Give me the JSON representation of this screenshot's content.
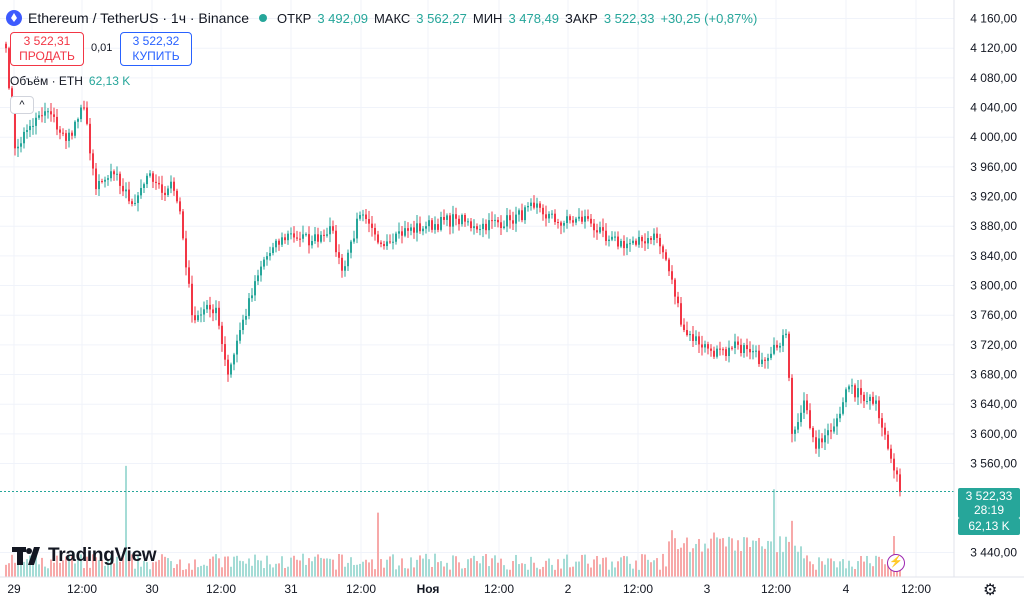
{
  "header": {
    "symbol": "Ethereum / TetherUS · 1ч · Binance",
    "open_label": "ОТКР",
    "open_value": "3 492,09",
    "high_label": "МАКС",
    "high_value": "3 562,27",
    "low_label": "МИН",
    "low_value": "3 478,49",
    "close_label": "ЗАКР",
    "close_value": "3 522,33",
    "change": "+30,25 (+0,87%)"
  },
  "trade": {
    "sell_price": "3 522,31",
    "sell_label": "ПРОДАТЬ",
    "spread": "0,01",
    "buy_price": "3 522,32",
    "buy_label": "КУПИТЬ"
  },
  "volume_legend": {
    "label": "Объём · ETH",
    "value": "62,13 K"
  },
  "collapse_icon": "^",
  "brand": "TradingView",
  "price_tag": {
    "price": "3 522,33",
    "countdown": "28:19"
  },
  "volume_tag": "62,13 K",
  "colors": {
    "up": "#26a69a",
    "down": "#f23645",
    "up_vol": "#a5dcd6",
    "down_vol": "#f7a9a9"
  },
  "chart_data": {
    "type": "candlestick",
    "x_tick_labels": [
      "29",
      "12:00",
      "30",
      "12:00",
      "31",
      "12:00",
      "Ноя",
      "12:00",
      "2",
      "12:00",
      "3",
      "12:00",
      "4",
      "12:00"
    ],
    "y_tick_labels": [
      "4 160,00",
      "4 120,00",
      "4 080,00",
      "4 040,00",
      "4 000,00",
      "3 960,00",
      "3 920,00",
      "3 880,00",
      "3 840,00",
      "3 800,00",
      "3 760,00",
      "3 720,00",
      "3 680,00",
      "3 640,00",
      "3 600,00",
      "3 560,00",
      "3 440,00"
    ],
    "y_ticks": [
      4160,
      4120,
      4080,
      4040,
      4000,
      3960,
      3920,
      3880,
      3840,
      3800,
      3760,
      3720,
      3680,
      3640,
      3600,
      3560,
      3440
    ],
    "ylim": [
      3407,
      4185
    ],
    "last_price": 3522.33,
    "anchors": [
      [
        0,
        4120
      ],
      [
        3,
        3985
      ],
      [
        8,
        4015
      ],
      [
        14,
        4035
      ],
      [
        20,
        3995
      ],
      [
        26,
        4040
      ],
      [
        30,
        3930
      ],
      [
        36,
        3950
      ],
      [
        42,
        3910
      ],
      [
        47,
        3948
      ],
      [
        52,
        3925
      ],
      [
        55,
        3940
      ],
      [
        58,
        3900
      ],
      [
        62,
        3760
      ],
      [
        70,
        3770
      ],
      [
        74,
        3680
      ],
      [
        78,
        3740
      ],
      [
        86,
        3835
      ],
      [
        94,
        3870
      ],
      [
        102,
        3860
      ],
      [
        108,
        3880
      ],
      [
        112,
        3820
      ],
      [
        118,
        3895
      ],
      [
        124,
        3858
      ],
      [
        130,
        3870
      ],
      [
        140,
        3880
      ],
      [
        150,
        3890
      ],
      [
        156,
        3880
      ],
      [
        168,
        3888
      ],
      [
        176,
        3905
      ],
      [
        184,
        3885
      ],
      [
        194,
        3890
      ],
      [
        200,
        3860
      ],
      [
        210,
        3855
      ],
      [
        216,
        3870
      ],
      [
        220,
        3835
      ],
      [
        226,
        3740
      ],
      [
        234,
        3715
      ],
      [
        240,
        3705
      ],
      [
        244,
        3720
      ],
      [
        248,
        3710
      ],
      [
        252,
        3700
      ],
      [
        256,
        3720
      ],
      [
        260,
        3735
      ],
      [
        262,
        3600
      ],
      [
        266,
        3645
      ],
      [
        270,
        3580
      ],
      [
        276,
        3610
      ],
      [
        280,
        3660
      ],
      [
        290,
        3645
      ],
      [
        294,
        3580
      ],
      [
        298,
        3522
      ]
    ],
    "volume_spikes": {
      "40": 0.95,
      "124": 0.55,
      "222": 0.4,
      "236": 0.38,
      "256": 0.75,
      "262": 0.48,
      "296": 0.35
    },
    "volume_ylim": [
      0,
      125
    ]
  }
}
